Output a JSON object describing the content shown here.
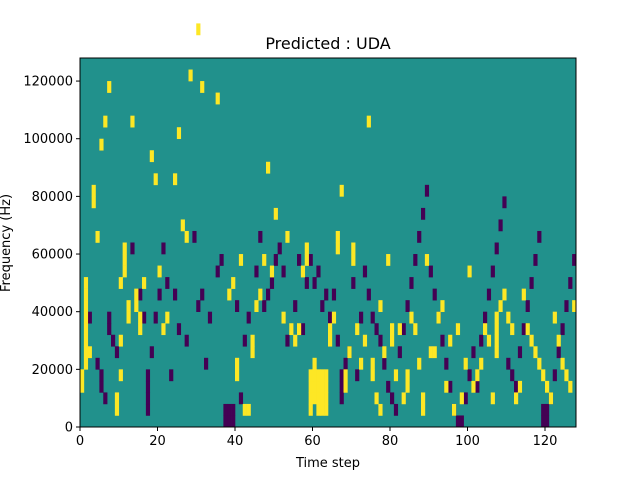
{
  "chart_data": {
    "type": "heatmap",
    "title": "Predicted : UDA",
    "xlabel": "Time step",
    "ylabel": "Frequency (Hz)",
    "xlim": [
      0,
      128
    ],
    "ylim": [
      0,
      128000
    ],
    "xticks": [
      0,
      20,
      40,
      60,
      80,
      100,
      120
    ],
    "yticks": [
      0,
      20000,
      40000,
      60000,
      80000,
      100000,
      120000
    ],
    "colors": {
      "background": "#21918c",
      "low": "#440154",
      "high": "#fde725"
    },
    "cell_width": 1,
    "cell_height": 4000,
    "cells": {
      "high": [
        [
          0,
          3
        ],
        [
          0,
          4
        ],
        [
          1,
          5
        ],
        [
          1,
          6
        ],
        [
          1,
          7
        ],
        [
          1,
          8
        ],
        [
          1,
          9
        ],
        [
          1,
          10
        ],
        [
          1,
          11
        ],
        [
          1,
          12
        ],
        [
          2,
          6
        ],
        [
          3,
          19
        ],
        [
          3,
          20
        ],
        [
          4,
          16
        ],
        [
          5,
          24
        ],
        [
          6,
          26
        ],
        [
          7,
          29
        ],
        [
          9,
          1
        ],
        [
          9,
          2
        ],
        [
          10,
          4
        ],
        [
          10,
          7
        ],
        [
          10,
          12
        ],
        [
          11,
          13
        ],
        [
          11,
          14
        ],
        [
          11,
          15
        ],
        [
          12,
          9
        ],
        [
          12,
          10
        ],
        [
          13,
          26
        ],
        [
          14,
          10
        ],
        [
          14,
          11
        ],
        [
          15,
          8
        ],
        [
          15,
          9
        ],
        [
          16,
          12
        ],
        [
          18,
          23
        ],
        [
          19,
          21
        ],
        [
          20,
          13
        ],
        [
          21,
          8
        ],
        [
          22,
          9
        ],
        [
          24,
          21
        ],
        [
          25,
          25
        ],
        [
          26,
          17
        ],
        [
          27,
          16
        ],
        [
          28,
          30
        ],
        [
          30,
          34
        ],
        [
          31,
          29
        ],
        [
          35,
          28
        ],
        [
          38,
          11
        ],
        [
          39,
          12
        ],
        [
          40,
          4
        ],
        [
          40,
          5
        ],
        [
          41,
          14
        ],
        [
          42,
          1
        ],
        [
          43,
          1
        ],
        [
          44,
          6
        ],
        [
          44,
          7
        ],
        [
          45,
          10
        ],
        [
          46,
          11
        ],
        [
          47,
          14
        ],
        [
          48,
          22
        ],
        [
          49,
          13
        ],
        [
          50,
          18
        ],
        [
          52,
          9
        ],
        [
          53,
          16
        ],
        [
          54,
          8
        ],
        [
          55,
          7
        ],
        [
          56,
          8
        ],
        [
          57,
          13
        ],
        [
          58,
          14
        ],
        [
          58,
          15
        ],
        [
          59,
          1
        ],
        [
          59,
          2
        ],
        [
          59,
          3
        ],
        [
          59,
          4
        ],
        [
          60,
          2
        ],
        [
          60,
          3
        ],
        [
          60,
          4
        ],
        [
          60,
          5
        ],
        [
          61,
          1
        ],
        [
          61,
          2
        ],
        [
          61,
          3
        ],
        [
          61,
          4
        ],
        [
          62,
          1
        ],
        [
          62,
          2
        ],
        [
          62,
          3
        ],
        [
          62,
          4
        ],
        [
          63,
          1
        ],
        [
          63,
          2
        ],
        [
          63,
          3
        ],
        [
          63,
          4
        ],
        [
          64,
          7
        ],
        [
          64,
          8
        ],
        [
          65,
          9
        ],
        [
          66,
          15
        ],
        [
          66,
          16
        ],
        [
          67,
          20
        ],
        [
          68,
          3
        ],
        [
          68,
          4
        ],
        [
          69,
          6
        ],
        [
          70,
          14
        ],
        [
          70,
          15
        ],
        [
          71,
          8
        ],
        [
          72,
          5
        ],
        [
          73,
          7
        ],
        [
          74,
          26
        ],
        [
          75,
          4
        ],
        [
          75,
          5
        ],
        [
          76,
          2
        ],
        [
          77,
          1
        ],
        [
          77,
          10
        ],
        [
          78,
          6
        ],
        [
          79,
          14
        ],
        [
          80,
          7
        ],
        [
          80,
          8
        ],
        [
          81,
          4
        ],
        [
          82,
          8
        ],
        [
          83,
          2
        ],
        [
          84,
          3
        ],
        [
          84,
          4
        ],
        [
          85,
          9
        ],
        [
          86,
          8
        ],
        [
          87,
          5
        ],
        [
          88,
          1
        ],
        [
          88,
          2
        ],
        [
          89,
          14
        ],
        [
          90,
          6
        ],
        [
          91,
          6
        ],
        [
          92,
          9
        ],
        [
          93,
          10
        ],
        [
          94,
          3
        ],
        [
          95,
          7
        ],
        [
          96,
          1
        ],
        [
          97,
          8
        ],
        [
          98,
          2
        ],
        [
          99,
          5
        ],
        [
          100,
          13
        ],
        [
          101,
          3
        ],
        [
          102,
          4
        ],
        [
          103,
          5
        ],
        [
          104,
          8
        ],
        [
          105,
          7
        ],
        [
          106,
          2
        ],
        [
          107,
          6
        ],
        [
          107,
          7
        ],
        [
          107,
          8
        ],
        [
          107,
          9
        ],
        [
          108,
          10
        ],
        [
          109,
          11
        ],
        [
          110,
          9
        ],
        [
          111,
          8
        ],
        [
          112,
          2
        ],
        [
          113,
          3
        ],
        [
          114,
          11
        ],
        [
          115,
          8
        ],
        [
          116,
          7
        ],
        [
          117,
          6
        ],
        [
          118,
          5
        ],
        [
          119,
          4
        ],
        [
          120,
          3
        ],
        [
          121,
          2
        ],
        [
          122,
          9
        ],
        [
          123,
          7
        ],
        [
          124,
          5
        ],
        [
          125,
          4
        ],
        [
          126,
          3
        ],
        [
          127,
          10
        ]
      ],
      "low": [
        [
          2,
          9
        ],
        [
          4,
          5
        ],
        [
          5,
          3
        ],
        [
          5,
          4
        ],
        [
          6,
          2
        ],
        [
          7,
          8
        ],
        [
          7,
          9
        ],
        [
          8,
          7
        ],
        [
          9,
          6
        ],
        [
          13,
          15
        ],
        [
          15,
          11
        ],
        [
          16,
          9
        ],
        [
          17,
          1
        ],
        [
          17,
          2
        ],
        [
          17,
          3
        ],
        [
          17,
          4
        ],
        [
          18,
          6
        ],
        [
          19,
          9
        ],
        [
          20,
          11
        ],
        [
          21,
          15
        ],
        [
          22,
          12
        ],
        [
          23,
          4
        ],
        [
          24,
          11
        ],
        [
          25,
          8
        ],
        [
          27,
          7
        ],
        [
          29,
          16
        ],
        [
          30,
          10
        ],
        [
          31,
          11
        ],
        [
          32,
          5
        ],
        [
          33,
          9
        ],
        [
          35,
          13
        ],
        [
          36,
          14
        ],
        [
          37,
          0
        ],
        [
          37,
          1
        ],
        [
          38,
          0
        ],
        [
          38,
          1
        ],
        [
          39,
          0
        ],
        [
          39,
          1
        ],
        [
          40,
          10
        ],
        [
          41,
          2
        ],
        [
          42,
          7
        ],
        [
          43,
          9
        ],
        [
          45,
          13
        ],
        [
          46,
          16
        ],
        [
          47,
          10
        ],
        [
          48,
          11
        ],
        [
          49,
          12
        ],
        [
          50,
          14
        ],
        [
          51,
          15
        ],
        [
          52,
          13
        ],
        [
          53,
          7
        ],
        [
          55,
          10
        ],
        [
          56,
          14
        ],
        [
          57,
          8
        ],
        [
          58,
          12
        ],
        [
          59,
          14
        ],
        [
          60,
          12
        ],
        [
          61,
          13
        ],
        [
          62,
          10
        ],
        [
          63,
          11
        ],
        [
          64,
          9
        ],
        [
          65,
          11
        ],
        [
          66,
          7
        ],
        [
          67,
          2
        ],
        [
          67,
          3
        ],
        [
          67,
          4
        ],
        [
          68,
          5
        ],
        [
          69,
          6
        ],
        [
          70,
          12
        ],
        [
          71,
          4
        ],
        [
          72,
          9
        ],
        [
          73,
          13
        ],
        [
          74,
          11
        ],
        [
          75,
          9
        ],
        [
          76,
          8
        ],
        [
          77,
          7
        ],
        [
          78,
          5
        ],
        [
          79,
          3
        ],
        [
          80,
          2
        ],
        [
          81,
          1
        ],
        [
          82,
          6
        ],
        [
          83,
          8
        ],
        [
          84,
          10
        ],
        [
          85,
          12
        ],
        [
          86,
          14
        ],
        [
          87,
          16
        ],
        [
          88,
          18
        ],
        [
          89,
          20
        ],
        [
          90,
          13
        ],
        [
          91,
          11
        ],
        [
          92,
          9
        ],
        [
          93,
          7
        ],
        [
          94,
          5
        ],
        [
          95,
          3
        ],
        [
          96,
          1
        ],
        [
          97,
          0
        ],
        [
          98,
          0
        ],
        [
          99,
          2
        ],
        [
          100,
          4
        ],
        [
          101,
          6
        ],
        [
          102,
          3
        ],
        [
          103,
          7
        ],
        [
          104,
          9
        ],
        [
          105,
          11
        ],
        [
          106,
          13
        ],
        [
          107,
          15
        ],
        [
          108,
          17
        ],
        [
          109,
          19
        ],
        [
          110,
          5
        ],
        [
          111,
          4
        ],
        [
          112,
          3
        ],
        [
          113,
          6
        ],
        [
          114,
          8
        ],
        [
          115,
          10
        ],
        [
          116,
          12
        ],
        [
          117,
          14
        ],
        [
          118,
          16
        ],
        [
          119,
          1
        ],
        [
          119,
          0
        ],
        [
          120,
          0
        ],
        [
          120,
          1
        ],
        [
          121,
          2
        ],
        [
          122,
          4
        ],
        [
          123,
          6
        ],
        [
          124,
          8
        ],
        [
          125,
          10
        ],
        [
          126,
          12
        ],
        [
          127,
          14
        ]
      ]
    }
  }
}
